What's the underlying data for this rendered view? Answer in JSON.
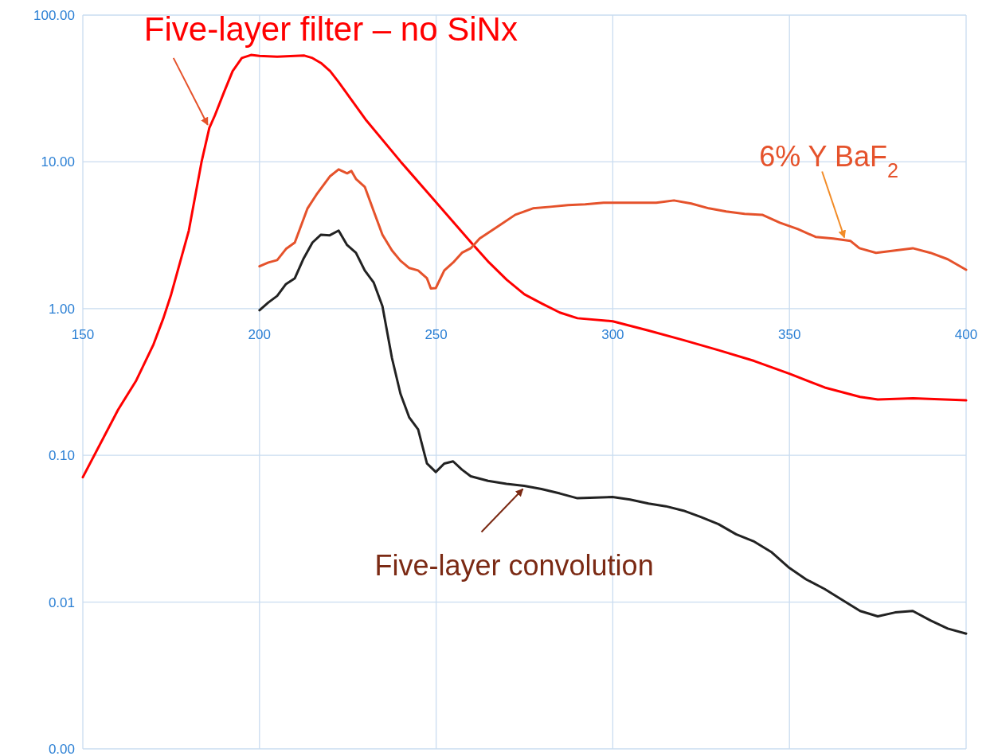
{
  "chart_data": {
    "type": "line",
    "log": "y",
    "grid": true,
    "marker": "none",
    "xlim": [
      150,
      400
    ],
    "xticks": [
      150,
      200,
      250,
      300,
      350,
      400
    ],
    "ylim": [
      0.001,
      100
    ],
    "yticks": [
      {
        "value": 0.001,
        "label": "0.00"
      },
      {
        "value": 0.01,
        "label": "0.01"
      },
      {
        "value": 0.1,
        "label": "0.10"
      },
      {
        "value": 1,
        "label": "1.00"
      },
      {
        "value": 10,
        "label": "10.00"
      },
      {
        "value": 100,
        "label": "100.00"
      }
    ],
    "series": [
      {
        "color": "#ff0000",
        "x": [
          150,
          160,
          165,
          170,
          172.8,
          175,
          180,
          183.6,
          185.8,
          187.4,
          190,
          192.4,
          195,
          197.6,
          200,
          205,
          210,
          212.7,
          215,
          217.6,
          220,
          222.4,
          230,
          240,
          250,
          260,
          265,
          270,
          275,
          280,
          285,
          290,
          300,
          310,
          320,
          330,
          340,
          350,
          360,
          370,
          375,
          385,
          400
        ],
        "values": [
          0.071,
          0.205,
          0.32,
          0.57,
          0.86,
          1.25,
          3.4,
          10,
          17,
          20.8,
          30,
          41.5,
          51,
          53.5,
          52.8,
          52,
          52.8,
          53,
          51,
          46.8,
          41.5,
          35,
          19.5,
          10,
          5.3,
          2.8,
          2.06,
          1.57,
          1.25,
          1.08,
          0.94,
          0.86,
          0.82,
          0.71,
          0.61,
          0.52,
          0.44,
          0.36,
          0.29,
          0.25,
          0.24,
          0.245,
          0.237
        ]
      },
      {
        "color": "#e5522b",
        "x": [
          200,
          202.5,
          205,
          207.5,
          210,
          213.6,
          216.1,
          219.9,
          222.4,
          224.8,
          226,
          227.3,
          229.8,
          232.3,
          234.8,
          237.5,
          239.9,
          242.4,
          244.9,
          247.4,
          248.5,
          249.9,
          252.3,
          254.8,
          257.3,
          259.8,
          262.3,
          267.4,
          272.4,
          277.4,
          282.3,
          287.3,
          292.2,
          297.4,
          302.4,
          307.3,
          312.3,
          317.3,
          322.2,
          327.2,
          332.1,
          337.3,
          342.3,
          347.3,
          352.4,
          357.4,
          362.4,
          367.3,
          369.8,
          374.5,
          379.9,
          384.9,
          389.9,
          394.8,
          400
        ],
        "values": [
          1.94,
          2.06,
          2.14,
          2.55,
          2.82,
          4.82,
          5.97,
          7.95,
          8.89,
          8.35,
          8.67,
          7.65,
          6.76,
          4.64,
          3.19,
          2.49,
          2.12,
          1.89,
          1.82,
          1.61,
          1.37,
          1.38,
          1.82,
          2.06,
          2.4,
          2.58,
          3,
          3.62,
          4.36,
          4.82,
          4.94,
          5.07,
          5.13,
          5.26,
          5.26,
          5.26,
          5.26,
          5.46,
          5.2,
          4.82,
          4.59,
          4.42,
          4.36,
          3.85,
          3.48,
          3.08,
          3,
          2.89,
          2.58,
          2.4,
          2.49,
          2.58,
          2.4,
          2.17,
          1.84
        ]
      },
      {
        "color": "#222222",
        "x": [
          200,
          202.5,
          205,
          207.5,
          210,
          212.5,
          215,
          217.4,
          219.9,
          222.4,
          224.8,
          227.3,
          229.8,
          232.3,
          234.8,
          237.5,
          239.9,
          242.4,
          244.9,
          247.4,
          249.9,
          252.3,
          254.8,
          257.3,
          259.8,
          264.7,
          269.9,
          274.9,
          279.8,
          285,
          290,
          299.9,
          304.9,
          310.1,
          315,
          320,
          324.9,
          329.9,
          334.9,
          339.8,
          344.8,
          349.7,
          354.7,
          359.9,
          364.8,
          370,
          375,
          379.9,
          384.9,
          389.9,
          394.8,
          400
        ],
        "values": [
          0.975,
          1.1,
          1.22,
          1.47,
          1.61,
          2.2,
          2.82,
          3.19,
          3.16,
          3.4,
          2.71,
          2.4,
          1.82,
          1.51,
          1.04,
          0.46,
          0.263,
          0.181,
          0.15,
          0.088,
          0.077,
          0.088,
          0.091,
          0.08,
          0.072,
          0.067,
          0.064,
          0.062,
          0.059,
          0.055,
          0.051,
          0.052,
          0.05,
          0.047,
          0.045,
          0.042,
          0.038,
          0.034,
          0.029,
          0.026,
          0.022,
          0.0173,
          0.0143,
          0.0123,
          0.0104,
          0.0087,
          0.008,
          0.0085,
          0.0087,
          0.0075,
          0.0066,
          0.0061
        ]
      }
    ],
    "annotations": [
      {
        "text": "Five-layer filter – no SiNx",
        "x": 185.8,
        "y": 17
      },
      {
        "text": "6% Y BaF$_{2}$",
        "x": 366,
        "y": 2.9
      },
      {
        "text": "Five-layer convolution",
        "x": 275,
        "y": 0.062
      }
    ]
  }
}
